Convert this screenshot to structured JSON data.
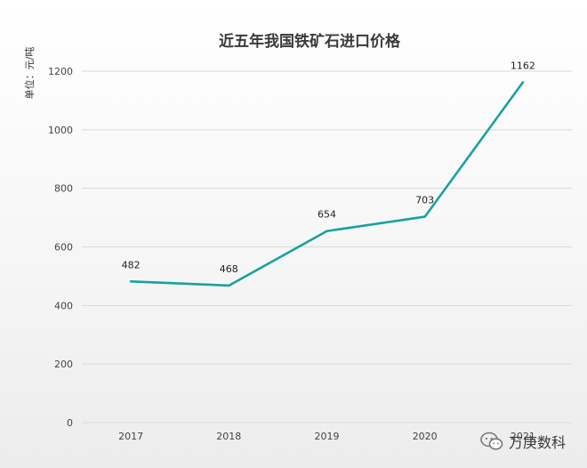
{
  "chart_data": {
    "type": "line",
    "title": "近五年我国铁矿石进口价格",
    "ylabel": "单位：元/吨",
    "xlabel": "",
    "categories": [
      "2017",
      "2018",
      "2019",
      "2020",
      "2021"
    ],
    "series": [
      {
        "values": [
          482,
          468,
          654,
          703,
          1162
        ],
        "color": "#17a2a0"
      }
    ],
    "data_labels": [
      "482",
      "468",
      "654",
      "703",
      "1162"
    ],
    "yticks": [
      0,
      200,
      400,
      600,
      800,
      1000,
      1200
    ],
    "ylim": [
      0,
      1200
    ],
    "grid": true,
    "legend": "none"
  },
  "watermark": {
    "icon": "wechat-icon",
    "text": "万庚数科"
  }
}
